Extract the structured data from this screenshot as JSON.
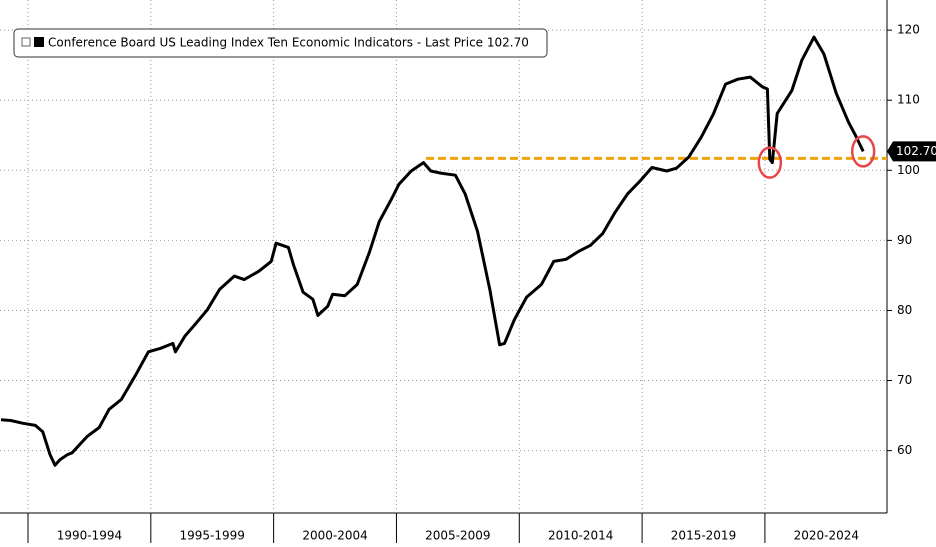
{
  "chart_data": {
    "type": "line",
    "x": [
      1988.9,
      1989.3,
      1989.8,
      1990.3,
      1990.6,
      1990.9,
      1991.1,
      1991.3,
      1991.6,
      1991.8,
      1992.4,
      1992.9,
      1993.3,
      1993.8,
      1994.4,
      1994.9,
      1995.4,
      1995.9,
      1996.0,
      1996.4,
      1996.8,
      1997.3,
      1997.8,
      1998.4,
      1998.8,
      1999.4,
      1999.9,
      2000.1,
      2000.6,
      2000.8,
      2001.2,
      2001.6,
      2001.8,
      2002.2,
      2002.4,
      2002.9,
      2003.4,
      2003.9,
      2004.3,
      2004.8,
      2005.1,
      2005.6,
      2006.1,
      2006.4,
      2006.8,
      2007.4,
      2007.8,
      2008.3,
      2008.8,
      2009.2,
      2009.4,
      2009.8,
      2010.3,
      2010.9,
      2011.4,
      2011.9,
      2012.4,
      2012.9,
      2013.4,
      2013.9,
      2014.4,
      2014.9,
      2015.4,
      2016.0,
      2016.4,
      2016.9,
      2017.4,
      2017.9,
      2018.4,
      2018.9,
      2019.4,
      2019.9,
      2020.1,
      2020.2,
      2020.3,
      2020.5,
      2021.1,
      2021.5,
      2022.0,
      2022.4,
      2022.9,
      2023.4,
      2023.7,
      2024.0
    ],
    "series": [
      {
        "name": "Conference Board US Leading Index Ten Economic Indicators - Last Price 102.70",
        "color": "#000000",
        "values": [
          64.4,
          64.3,
          63.9,
          63.6,
          62.7,
          59.4,
          57.9,
          58.7,
          59.4,
          59.7,
          62.0,
          63.3,
          65.9,
          67.3,
          70.9,
          74.1,
          74.6,
          75.3,
          74.1,
          76.4,
          78.0,
          80.1,
          83.0,
          84.9,
          84.4,
          85.6,
          87.0,
          89.6,
          89.0,
          86.6,
          82.6,
          81.6,
          79.3,
          80.6,
          82.3,
          82.1,
          83.7,
          88.3,
          92.7,
          95.9,
          98.0,
          99.9,
          101.1,
          99.9,
          99.6,
          99.3,
          96.6,
          91.3,
          83.0,
          75.1,
          75.3,
          78.7,
          81.9,
          83.7,
          87.0,
          87.3,
          88.4,
          89.3,
          91.0,
          94.0,
          96.6,
          98.4,
          100.4,
          99.9,
          100.3,
          101.9,
          104.7,
          108.0,
          112.3,
          113.0,
          113.3,
          111.9,
          111.6,
          101.6,
          101.1,
          108.1,
          111.4,
          115.7,
          119.0,
          116.6,
          111.0,
          106.9,
          104.9,
          102.7
        ]
      }
    ],
    "last_price": {
      "value": 102.7,
      "label": "102.70"
    },
    "reference_line": {
      "value": 101.7,
      "from": 2006.2,
      "color": "#f0a30a"
    },
    "highlights": [
      {
        "x": 2020.2,
        "y": 101.1
      },
      {
        "x": 2024.0,
        "y": 102.7
      }
    ],
    "highlight_color": "#e8474a",
    "xlim": [
      1988.86,
      2024.97
    ],
    "xticks": [
      {
        "value": 1992.5,
        "label": "1990-1994"
      },
      {
        "value": 1997.5,
        "label": "1995-1999"
      },
      {
        "value": 2002.5,
        "label": "2000-2004"
      },
      {
        "value": 2007.5,
        "label": "2005-2009"
      },
      {
        "value": 2012.5,
        "label": "2010-2014"
      },
      {
        "value": 2017.5,
        "label": "2015-2019"
      },
      {
        "value": 2022.5,
        "label": "2020-2024"
      }
    ],
    "ylim": [
      51.1,
      124.3
    ],
    "yticks": [
      60,
      70,
      80,
      90,
      100,
      110,
      120
    ],
    "grid": true
  }
}
